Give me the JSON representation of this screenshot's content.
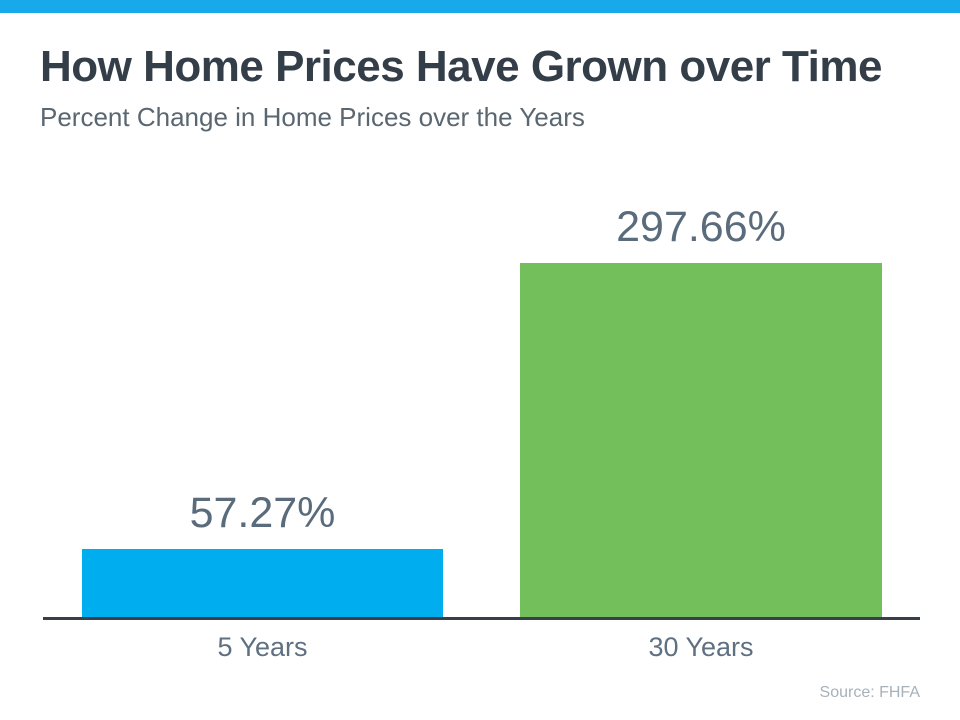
{
  "page": {
    "title": "How Home Prices Have Grown over Time",
    "subtitle": "Percent Change in Home Prices over the Years",
    "source": "Source: FHFA"
  },
  "colors": {
    "top_strip": "#17A9EA",
    "bar_blue": "#00AEEF",
    "bar_green": "#72BF5B",
    "title_text": "#333E48",
    "subtitle_text": "#5A6771",
    "value_label_text": "#5A6B7B",
    "category_label_text": "#5E7081",
    "axis_line": "#37404A",
    "source_text": "#A7B1BA"
  },
  "chart_data": {
    "type": "bar",
    "title": "How Home Prices Have Grown over Time",
    "subtitle": "Percent Change in Home Prices over the Years",
    "categories": [
      "5 Years",
      "30 Years"
    ],
    "values": [
      57.27,
      297.66
    ],
    "value_labels": [
      "57.27%",
      "297.66%"
    ],
    "bar_colors": [
      "#00AEEF",
      "#72BF5B"
    ],
    "xlabel": "",
    "ylabel": "",
    "ylim": [
      0,
      297.66
    ],
    "grid": false,
    "legend": false,
    "value_labels_position": "above-bars",
    "source": "Source: FHFA"
  }
}
